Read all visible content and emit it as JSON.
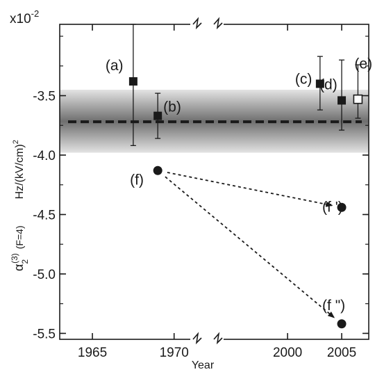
{
  "chart_data": {
    "type": "scatter",
    "title": "",
    "xlabel": "Year",
    "ylabel": {
      "symbol": "α",
      "superscript": "(3)",
      "subscript": "2",
      "condition": "(F=4)",
      "units": "Hz/(kV/cm)"
    },
    "ylabel_units_exponent": "2",
    "y_multiplier": {
      "base": "x10",
      "exponent": "-2"
    },
    "ylim": [
      -5.55,
      -2.9
    ],
    "x_axis": {
      "broken": true,
      "segment_left": {
        "range": [
          1963,
          1971.5
        ],
        "ticks": [
          "1965",
          "1970"
        ]
      },
      "segment_right": {
        "range": [
          1993,
          2007.5
        ],
        "ticks": [
          "2000",
          "2005"
        ]
      }
    },
    "y_ticks": [
      "-3.5",
      "-4.0",
      "-4.5",
      "-5.0",
      "-5.5"
    ],
    "reference": {
      "value": -3.72,
      "band": [
        -3.98,
        -3.45
      ],
      "line_style": "dashed",
      "band_style": "gray-gradient"
    },
    "points": [
      {
        "label": "(a)",
        "x": 1967.5,
        "y": -3.38,
        "yerr_low": -3.92,
        "yerr_high": -2.9,
        "marker": "filled-square"
      },
      {
        "label": "(b)",
        "x": 1969.0,
        "y": -3.67,
        "yerr_low": -3.86,
        "yerr_high": -3.48,
        "marker": "filled-square"
      },
      {
        "label": "(c)",
        "x": 2003.0,
        "y": -3.4,
        "yerr_low": -3.62,
        "yerr_high": -3.17,
        "marker": "filled-square"
      },
      {
        "label": "(d)",
        "x": 2005.0,
        "y": -3.54,
        "yerr_low": -3.79,
        "yerr_high": -3.2,
        "marker": "filled-square"
      },
      {
        "label": "(e)",
        "x": 2006.5,
        "y": -3.53,
        "yerr_low": -3.69,
        "yerr_high": -3.24,
        "marker": "open-square"
      },
      {
        "label": "(f)",
        "x": 1969.0,
        "y": -4.13,
        "marker": "filled-circle"
      },
      {
        "label": "(f ')",
        "x": 2005.0,
        "y": -4.44,
        "marker": "filled-circle"
      },
      {
        "label": "(f \")",
        "x": 2005.0,
        "y": -5.42,
        "marker": "filled-circle"
      }
    ],
    "arrows": [
      {
        "from": "(f)",
        "to": "(f ')",
        "style": "dotted"
      },
      {
        "from": "(f)",
        "to": "(f \")",
        "style": "dotted"
      }
    ],
    "grid": false,
    "legend": "none"
  }
}
